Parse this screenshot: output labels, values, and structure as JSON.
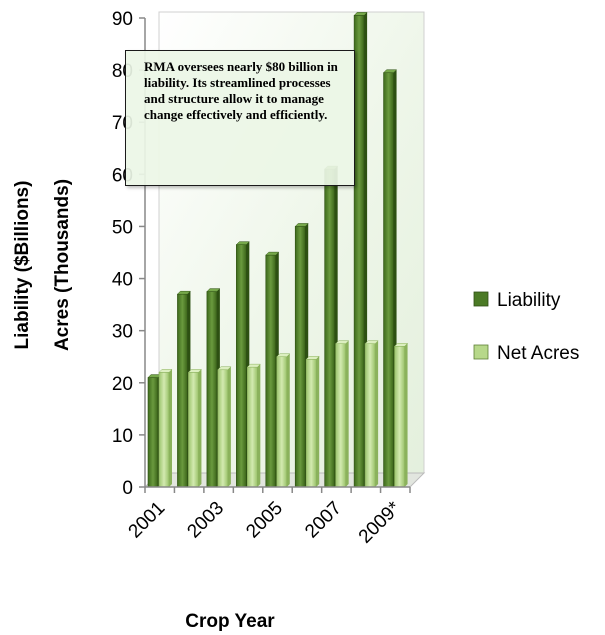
{
  "chart_data": {
    "type": "bar",
    "title": "",
    "ylabel_line1": "Liability ($Billions)",
    "ylabel_line2": "Acres (Thousands)",
    "xlabel": "Crop Year",
    "ylim": [
      0,
      90
    ],
    "yticks": [
      "0",
      "10",
      "20",
      "30",
      "40",
      "50",
      "60",
      "70",
      "80",
      "90"
    ],
    "categories": [
      "2001",
      "2002",
      "2003",
      "2004",
      "2005",
      "2006",
      "2007",
      "2008",
      "2009*"
    ],
    "xtick_labels": [
      "2001",
      "2003",
      "2005",
      "2007",
      "2009*"
    ],
    "series": [
      {
        "name": "Liability",
        "color": "#4b7a25",
        "values": [
          21,
          37,
          37.5,
          46.5,
          44.5,
          50,
          61,
          90.5,
          79.5
        ]
      },
      {
        "name": "Net Acres",
        "color": "#b7d88a",
        "values": [
          22,
          22,
          22.5,
          23,
          25,
          24.5,
          27.5,
          27.5,
          27
        ]
      }
    ],
    "legend_position": "right",
    "grid": false,
    "annotation": "RMA oversees nearly $80 billion in liability. Its streamlined processes and structure allow it to manage change effectively and efficiently."
  }
}
